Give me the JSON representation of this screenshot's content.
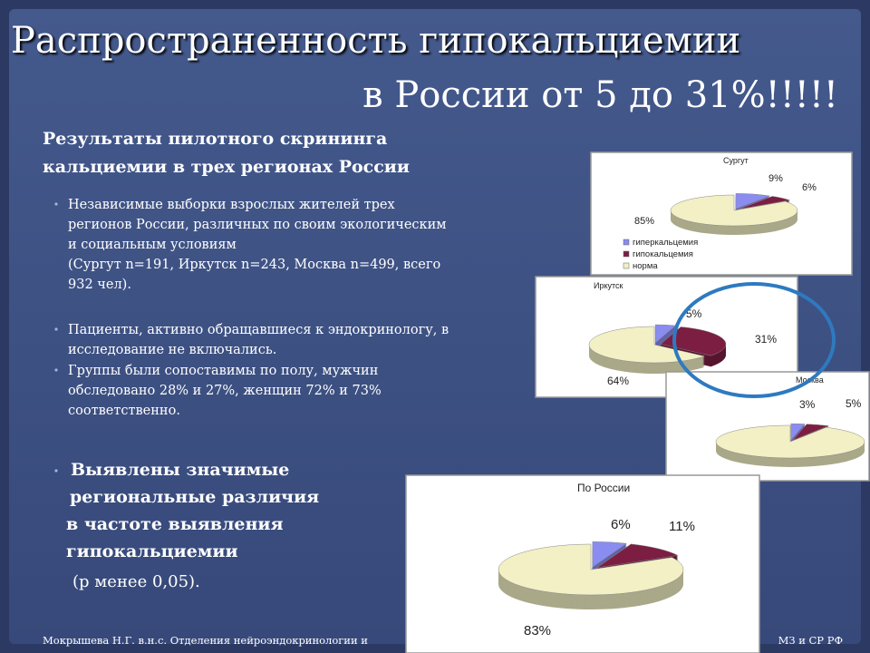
{
  "slide": {
    "title": [
      "Распространенность гипокальциемии",
      "в России от 5 до 31%!!!!!"
    ],
    "subtitle": [
      "Результаты пилотного скрининга",
      "кальциемии в трех регионах России"
    ],
    "bullets": [
      [
        "Независимые выборки взрослых жителей трех",
        "регионов России, различных по своим экологическим",
        "и социальным условиям",
        "(Сургут n=191, Иркутск n=243, Москва n=499, всего",
        "932 чел)."
      ],
      [
        "Пациенты, активно обращавшиеся к эндокринологу, в",
        "исследование не включались."
      ],
      [
        "Группы были сопоставимы по полу, мужчин",
        "обследовано 28% и 27%, женщин 72% и 73%",
        "соответственно."
      ],
      [
        "Выявлены значимые",
        "региональные различия",
        "в частоте выявления",
        "гипокальциемии"
      ]
    ],
    "note": "(р менее 0,05).",
    "footer": [
      "Мокрышева Н.Г. в.н.с. Отделения нейроэндокринологии и",
      "МЗ и СР РФ"
    ]
  },
  "chart_data": [
    {
      "type": "pie",
      "title": "Сургут",
      "categories": [
        "гиперкальцемия",
        "гипокальцемия",
        "норма"
      ],
      "values": [
        9,
        6,
        85
      ],
      "value_labels": [
        "9%",
        "6%",
        "85%"
      ],
      "colors": [
        "#8a8cf0",
        "#7b1e42",
        "#f2f0c4"
      ]
    },
    {
      "type": "pie",
      "title": "Иркутск",
      "values": [
        5,
        31,
        64
      ],
      "value_labels": [
        "5%",
        "31%",
        "64%"
      ],
      "colors": [
        "#8a8cf0",
        "#7b1e42",
        "#f2f0c4"
      ]
    },
    {
      "type": "pie",
      "title": "Москва",
      "values": [
        3,
        5,
        92
      ],
      "value_labels": [
        "3%",
        "5%",
        null
      ],
      "colors": [
        "#8a8cf0",
        "#7b1e42",
        "#f2f0c4"
      ]
    },
    {
      "type": "pie",
      "title": "По России",
      "values": [
        6,
        11,
        83
      ],
      "value_labels": [
        "6%",
        "11%",
        "83%"
      ],
      "colors": [
        "#8a8cf0",
        "#7b1e42",
        "#f2f0c4"
      ]
    }
  ]
}
